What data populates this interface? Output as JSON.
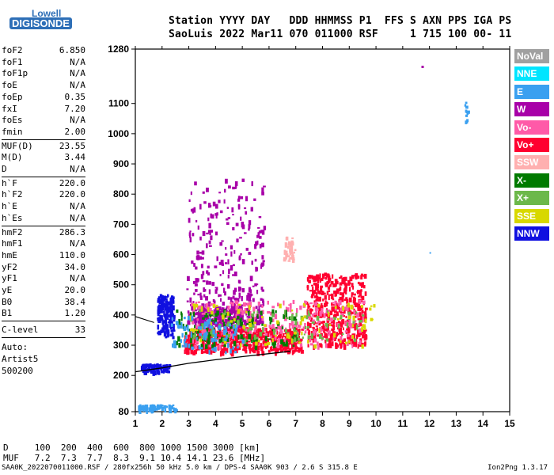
{
  "logo": {
    "lowell": "Lowell",
    "digisonde": "DIGISONDE"
  },
  "header": {
    "line1": "Station YYYY DAY   DDD HHMMSS P1  FFS S AXN PPS IGA PS",
    "line2": "SaoLuis 2022 Mar11 070 011000 RSF     1 715 100 00- 11"
  },
  "params_group1": [
    {
      "k": "foF2",
      "v": "6.850"
    },
    {
      "k": "foF1",
      "v": "N/A"
    },
    {
      "k": "foF1p",
      "v": "N/A"
    },
    {
      "k": "foE",
      "v": "N/A"
    },
    {
      "k": "foEp",
      "v": "0.35"
    },
    {
      "k": "fxI",
      "v": "7.20"
    },
    {
      "k": "foEs",
      "v": "N/A"
    },
    {
      "k": "fmin",
      "v": "2.00"
    }
  ],
  "params_group2": [
    {
      "k": "MUF(D)",
      "v": "23.55"
    },
    {
      "k": "M(D)",
      "v": "3.44"
    },
    {
      "k": "D",
      "v": "N/A"
    }
  ],
  "params_group3": [
    {
      "k": "h`F",
      "v": "220.0"
    },
    {
      "k": "h`F2",
      "v": "220.0"
    },
    {
      "k": "h`E",
      "v": "N/A"
    },
    {
      "k": "h`Es",
      "v": "N/A"
    }
  ],
  "params_group4": [
    {
      "k": "hmF2",
      "v": "286.3"
    },
    {
      "k": "hmF1",
      "v": "N/A"
    },
    {
      "k": "hmE",
      "v": "110.0"
    },
    {
      "k": "yF2",
      "v": "34.0"
    },
    {
      "k": "yF1",
      "v": "N/A"
    },
    {
      "k": "yE",
      "v": "20.0"
    },
    {
      "k": "B0",
      "v": "38.4"
    },
    {
      "k": "B1",
      "v": "1.20"
    }
  ],
  "clevel": {
    "k": "C-level",
    "v": "33"
  },
  "auto": {
    "line1": "Auto:",
    "line2": "Artist5",
    "line3": "500200"
  },
  "legend": [
    {
      "label": "NoVal",
      "color": "#a0a0a0"
    },
    {
      "label": "NNE",
      "color": "#00e5ff"
    },
    {
      "label": "E",
      "color": "#3aa0f0"
    },
    {
      "label": "W",
      "color": "#a800a8"
    },
    {
      "label": "Vo-",
      "color": "#ff5aa8"
    },
    {
      "label": "Vo+",
      "color": "#ff0030"
    },
    {
      "label": "SSW",
      "color": "#ffb0b0"
    },
    {
      "label": "X-",
      "color": "#007a00"
    },
    {
      "label": "X+",
      "color": "#6cb84a"
    },
    {
      "label": "SSE",
      "color": "#d8d800"
    },
    {
      "label": "NNW",
      "color": "#1010e0"
    }
  ],
  "muf_table": {
    "d_row": "D     100  200  400  600  800 1000 1500 3000 [km]",
    "muf_row": "MUF   7.2  7.3  7.7  8.3  9.1 10.4 14.1 23.6 [MHz]"
  },
  "footer": "SAA0K_2022070011000.RSF / 280fx256h 50 kHz 5.0 km / DPS-4 SAA0K 903 / 2.6 S 315.8 E",
  "version": "Ion2Png 1.3.17",
  "chart_data": {
    "type": "scatter",
    "xlim": [
      1,
      15
    ],
    "ylim": [
      80,
      1280
    ],
    "x_ticks": [
      1,
      2,
      3,
      4,
      5,
      6,
      7,
      8,
      9,
      10,
      11,
      12,
      13,
      14,
      15
    ],
    "y_ticks": [
      80,
      200,
      300,
      400,
      500,
      600,
      700,
      800,
      900,
      1000,
      1100,
      1280
    ],
    "trace": [
      [
        1.0,
        212
      ],
      [
        2.0,
        225
      ],
      [
        3.0,
        240
      ],
      [
        4.0,
        252
      ],
      [
        5.0,
        262
      ],
      [
        6.0,
        272
      ],
      [
        6.8,
        280
      ]
    ],
    "trace2": [
      [
        1.0,
        395
      ],
      [
        1.7,
        375
      ]
    ],
    "clusters": [
      {
        "color": "#a800a8",
        "x": [
          2.9,
          5.8
        ],
        "y": [
          380,
          860
        ],
        "n": 380
      },
      {
        "color": "#a800a8",
        "x": [
          3.2,
          5.0
        ],
        "y": [
          350,
          430
        ],
        "n": 220
      },
      {
        "color": "#1010e0",
        "x": [
          1.8,
          2.4
        ],
        "y": [
          330,
          470
        ],
        "n": 160
      },
      {
        "color": "#1010e0",
        "x": [
          1.2,
          2.3
        ],
        "y": [
          215,
          240
        ],
        "n": 80
      },
      {
        "color": "#ff0030",
        "x": [
          2.8,
          7.2
        ],
        "y": [
          280,
          360
        ],
        "n": 520
      },
      {
        "color": "#ff0030",
        "x": [
          7.4,
          9.6
        ],
        "y": [
          300,
          540
        ],
        "n": 480
      },
      {
        "color": "#ff5aa8",
        "x": [
          3.0,
          9.5
        ],
        "y": [
          300,
          450
        ],
        "n": 260
      },
      {
        "color": "#007a00",
        "x": [
          2.5,
          7.0
        ],
        "y": [
          300,
          420
        ],
        "n": 140
      },
      {
        "color": "#6cb84a",
        "x": [
          3.0,
          9.5
        ],
        "y": [
          320,
          420
        ],
        "n": 90
      },
      {
        "color": "#d8d800",
        "x": [
          3.0,
          10.0
        ],
        "y": [
          300,
          450
        ],
        "n": 90
      },
      {
        "color": "#3aa0f0",
        "x": [
          2.3,
          5.0
        ],
        "y": [
          280,
          400
        ],
        "n": 80
      },
      {
        "color": "#ffb0b0",
        "x": [
          6.5,
          7.0
        ],
        "y": [
          580,
          660
        ],
        "n": 40
      },
      {
        "color": "#3aa0f0",
        "x": [
          1.1,
          2.5
        ],
        "y": [
          88,
          105
        ],
        "n": 60
      },
      {
        "color": "#3aa0f0",
        "x": [
          13.3,
          13.4
        ],
        "y": [
          1040,
          1110
        ],
        "n": 14
      }
    ]
  }
}
